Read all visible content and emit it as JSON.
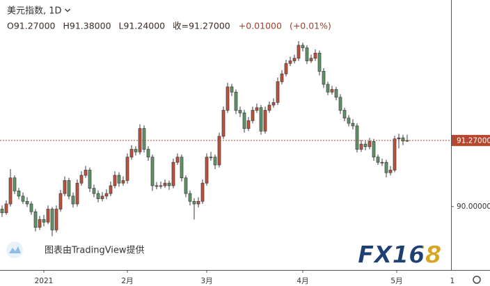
{
  "chart_data": {
    "type": "candlestick",
    "title": "美元指数, 1D",
    "legend": [
      "O91.27000",
      "H91.38000",
      "L91.24000",
      "收=91.27000",
      "+0.01000",
      "(+0.01%)"
    ],
    "attribution": "图表由TradingView提供",
    "logo": "FX168",
    "up_color": "#c0503a",
    "down_color": "#5e9468",
    "grid": false,
    "x": [
      0,
      1,
      2,
      3,
      4,
      5,
      6,
      7,
      8,
      9,
      10,
      11,
      12,
      13,
      14,
      15,
      16,
      17,
      18,
      19,
      20,
      21,
      22,
      23,
      24,
      25,
      26,
      27,
      28,
      29,
      30,
      31,
      32,
      33,
      34,
      35,
      36,
      37,
      38,
      39,
      40,
      41,
      42,
      43,
      44,
      45,
      46,
      47,
      48,
      49,
      50,
      51,
      52,
      53,
      54,
      55,
      56,
      57,
      58,
      59,
      60,
      61,
      62,
      63,
      64,
      65,
      66,
      67,
      68,
      69,
      70,
      71,
      72,
      73,
      74,
      75,
      76,
      77,
      78,
      79,
      80,
      81,
      82,
      83,
      84,
      85,
      86,
      87,
      88,
      89,
      90,
      91,
      92,
      93,
      94,
      95,
      96,
      97
    ],
    "open": [
      89.95,
      89.88,
      90.05,
      90.55,
      90.3,
      90.2,
      90.1,
      90.05,
      89.9,
      89.6,
      89.75,
      89.7,
      89.95,
      89.55,
      89.95,
      90.25,
      90.5,
      90.2,
      90.05,
      90.45,
      90.6,
      90.7,
      90.35,
      90.25,
      90.15,
      90.2,
      90.25,
      90.4,
      90.6,
      90.45,
      90.5,
      90.95,
      91.1,
      91.05,
      91.5,
      91.1,
      90.95,
      90.4,
      90.4,
      90.4,
      90.45,
      90.4,
      90.85,
      90.95,
      90.55,
      90.25,
      90.1,
      90.05,
      90.1,
      90.45,
      90.95,
      90.95,
      90.8,
      91.35,
      91.85,
      92.3,
      92.2,
      91.85,
      91.8,
      91.5,
      91.65,
      91.85,
      91.9,
      91.45,
      91.85,
      91.95,
      92.0,
      92.4,
      92.55,
      92.75,
      92.8,
      92.85,
      93.1,
      93.05,
      92.8,
      92.85,
      92.95,
      92.6,
      92.35,
      92.2,
      92.25,
      92.1,
      91.85,
      91.7,
      91.6,
      91.55,
      91.1,
      91.2,
      91.15,
      91.25,
      90.95,
      90.85,
      90.85,
      90.65,
      90.7,
      91.3,
      91.32,
      91.27
    ],
    "high": [
      90.02,
      90.12,
      90.72,
      90.6,
      90.36,
      90.27,
      90.18,
      90.1,
      89.95,
      89.82,
      89.84,
      90.02,
      89.99,
      90.02,
      90.32,
      90.58,
      90.55,
      90.27,
      90.52,
      90.68,
      90.78,
      90.75,
      90.42,
      90.31,
      90.28,
      90.33,
      90.48,
      90.68,
      90.66,
      90.58,
      91.02,
      91.18,
      91.16,
      91.58,
      91.56,
      91.16,
      91.0,
      90.47,
      90.48,
      90.52,
      90.5,
      90.92,
      91.02,
      91.0,
      90.6,
      90.31,
      90.16,
      90.18,
      90.52,
      91.02,
      91.05,
      91.0,
      91.42,
      91.92,
      92.38,
      92.36,
      92.25,
      91.92,
      91.86,
      91.72,
      91.92,
      91.98,
      91.95,
      91.92,
      92.02,
      92.08,
      92.48,
      92.62,
      92.82,
      92.88,
      92.92,
      93.18,
      93.15,
      93.1,
      92.92,
      93.02,
      93.0,
      92.66,
      92.4,
      92.32,
      92.3,
      92.16,
      91.9,
      91.76,
      91.68,
      91.6,
      91.28,
      91.26,
      91.32,
      91.3,
      91.0,
      90.92,
      90.9,
      90.78,
      91.36,
      91.4,
      91.38,
      91.38
    ],
    "low": [
      89.8,
      89.84,
      90.0,
      90.24,
      90.14,
      90.05,
      89.99,
      89.84,
      89.52,
      89.55,
      89.62,
      89.66,
      89.43,
      89.5,
      89.9,
      90.2,
      90.14,
      89.98,
      90.0,
      90.4,
      90.55,
      90.28,
      90.18,
      90.08,
      90.1,
      90.14,
      90.2,
      90.35,
      90.38,
      90.4,
      90.44,
      90.9,
      90.98,
      91.0,
      91.04,
      90.88,
      90.3,
      90.33,
      90.34,
      90.36,
      90.32,
      90.35,
      90.8,
      90.48,
      90.18,
      90.02,
      89.75,
      89.98,
      90.05,
      90.4,
      90.88,
      90.72,
      90.75,
      91.3,
      91.8,
      92.12,
      91.78,
      91.72,
      91.42,
      91.45,
      91.6,
      91.8,
      91.38,
      91.4,
      91.8,
      91.9,
      91.95,
      92.35,
      92.5,
      92.7,
      92.75,
      92.8,
      92.98,
      92.74,
      92.76,
      92.8,
      92.52,
      92.28,
      92.14,
      92.15,
      92.04,
      91.78,
      91.64,
      91.54,
      91.48,
      91.04,
      91.05,
      91.08,
      91.1,
      90.88,
      90.8,
      90.78,
      90.56,
      90.6,
      90.66,
      91.12,
      91.18,
      91.24
    ],
    "close": [
      89.88,
      90.05,
      90.55,
      90.3,
      90.2,
      90.1,
      90.05,
      89.9,
      89.6,
      89.75,
      89.7,
      89.95,
      89.55,
      89.95,
      90.25,
      90.5,
      90.2,
      90.05,
      90.45,
      90.6,
      90.7,
      90.35,
      90.25,
      90.15,
      90.2,
      90.25,
      90.4,
      90.6,
      90.45,
      90.5,
      90.95,
      91.1,
      91.05,
      91.5,
      91.1,
      90.95,
      90.4,
      90.4,
      90.4,
      90.45,
      90.4,
      90.85,
      90.95,
      90.55,
      90.25,
      90.1,
      90.05,
      90.1,
      90.45,
      90.95,
      90.95,
      90.8,
      91.35,
      91.85,
      92.3,
      92.2,
      91.85,
      91.8,
      91.5,
      91.65,
      91.85,
      91.9,
      91.45,
      91.85,
      91.95,
      92.0,
      92.4,
      92.55,
      92.75,
      92.8,
      92.85,
      93.1,
      93.05,
      92.8,
      92.85,
      92.95,
      92.6,
      92.35,
      92.2,
      92.25,
      92.1,
      91.85,
      91.7,
      91.6,
      91.55,
      91.1,
      91.2,
      91.15,
      91.25,
      90.95,
      90.85,
      90.85,
      90.65,
      90.7,
      91.3,
      91.32,
      91.26,
      91.27
    ],
    "last_price": {
      "value": 91.27,
      "label": "91.27000"
    },
    "xlim": [
      -0.5,
      107.5
    ],
    "xticks": [
      {
        "value": 10,
        "label": "2021"
      },
      {
        "value": 30,
        "label": "2月"
      },
      {
        "value": 49,
        "label": "3月"
      },
      {
        "value": 72,
        "label": "4月"
      },
      {
        "value": 94.5,
        "label": "5月"
      },
      {
        "value": 107.8,
        "label": "1"
      }
    ],
    "ylim": [
      88.78,
      93.97
    ],
    "yticks": [
      {
        "value": 90,
        "label": "90.00000"
      }
    ]
  }
}
